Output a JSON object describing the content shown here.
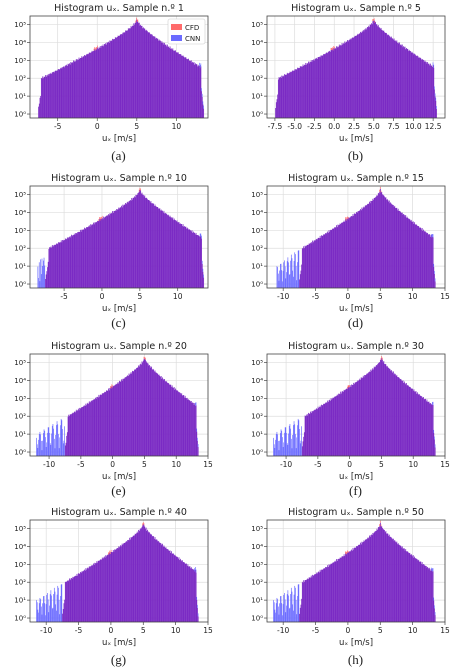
{
  "figure": {
    "captions": [
      "(a)",
      "(b)",
      "(c)",
      "(d)",
      "(e)",
      "(f)",
      "(g)",
      "(h)"
    ]
  },
  "colors": {
    "cfd": "#ff6b6b",
    "cnn": "#6b6bff",
    "overlap": "#7b2bc4",
    "grid": "#dddddd"
  },
  "chart_data": [
    {
      "type": "area",
      "title": "Histogram uₓ. Sample n.º 1",
      "xlabel": "uₓ [m/s]",
      "ylabel": "",
      "yscale": "log",
      "xlim": [
        -8.5,
        14
      ],
      "ylim": [
        0.6,
        300000
      ],
      "xticks": [
        -5,
        0,
        5,
        10
      ],
      "yticks": [
        1,
        10,
        100,
        1000,
        10000,
        100000
      ],
      "grid": true,
      "legend_position": "top-right",
      "series": [
        {
          "name": "CFD",
          "color": "#ff6b6b"
        },
        {
          "name": "CNN",
          "color": "#6b6bff"
        }
      ],
      "x_range": [
        -7.5,
        13.5
      ],
      "peak_x": 5.0,
      "peak_count": 200000,
      "spike_x": -0.2,
      "spike_count": 1500,
      "cnn_tail_min": -7.5
    },
    {
      "type": "area",
      "title": "Histogram uₓ. Sample n.º 5",
      "xlabel": "uₓ [m/s]",
      "ylabel": "",
      "yscale": "log",
      "xlim": [
        -8.5,
        14
      ],
      "ylim": [
        0.6,
        300000
      ],
      "xticks": [
        -7.5,
        -5.0,
        -2.5,
        0.0,
        2.5,
        5.0,
        7.5,
        10.0,
        12.5
      ],
      "yticks": [
        1,
        10,
        100,
        1000,
        10000,
        100000
      ],
      "grid": true,
      "legend_position": "none",
      "series": [
        {
          "name": "CFD",
          "color": "#ff6b6b"
        },
        {
          "name": "CNN",
          "color": "#6b6bff"
        }
      ],
      "x_range": [
        -7.5,
        13.0
      ],
      "peak_x": 5.0,
      "peak_count": 200000,
      "spike_x": -0.2,
      "spike_count": 2000,
      "cnn_tail_min": -7.5
    },
    {
      "type": "area",
      "title": "Histogram uₓ. Sample n.º 10",
      "xlabel": "uₓ [m/s]",
      "ylabel": "",
      "yscale": "log",
      "xlim": [
        -9.5,
        14
      ],
      "ylim": [
        0.6,
        300000
      ],
      "xticks": [
        -5,
        0,
        5,
        10
      ],
      "yticks": [
        1,
        10,
        100,
        1000,
        10000,
        100000
      ],
      "grid": true,
      "legend_position": "none",
      "series": [
        {
          "name": "CFD",
          "color": "#ff6b6b"
        },
        {
          "name": "CNN",
          "color": "#6b6bff"
        }
      ],
      "x_range": [
        -7.5,
        13.5
      ],
      "peak_x": 5.0,
      "peak_count": 200000,
      "spike_x": -0.2,
      "spike_count": 2000,
      "cnn_tail_min": -8.5
    },
    {
      "type": "area",
      "title": "Histogram uₓ. Sample n.º 15",
      "xlabel": "uₓ [m/s]",
      "ylabel": "",
      "yscale": "log",
      "xlim": [
        -12.5,
        15
      ],
      "ylim": [
        0.6,
        300000
      ],
      "xticks": [
        -10,
        -5,
        0,
        5,
        10,
        15
      ],
      "yticks": [
        1,
        10,
        100,
        1000,
        10000,
        100000
      ],
      "grid": true,
      "legend_position": "none",
      "series": [
        {
          "name": "CFD",
          "color": "#ff6b6b"
        },
        {
          "name": "CNN",
          "color": "#6b6bff"
        }
      ],
      "x_range": [
        -7.5,
        13.5
      ],
      "peak_x": 5.0,
      "peak_count": 200000,
      "spike_x": -0.2,
      "spike_count": 2000,
      "cnn_tail_min": -11.0
    },
    {
      "type": "area",
      "title": "Histogram uₓ. Sample n.º 20",
      "xlabel": "uₓ [m/s]",
      "ylabel": "",
      "yscale": "log",
      "xlim": [
        -13.0,
        15
      ],
      "ylim": [
        0.6,
        300000
      ],
      "xticks": [
        -10,
        -5,
        0,
        5,
        10,
        15
      ],
      "yticks": [
        1,
        10,
        100,
        1000,
        10000,
        100000
      ],
      "grid": true,
      "legend_position": "none",
      "series": [
        {
          "name": "CFD",
          "color": "#ff6b6b"
        },
        {
          "name": "CNN",
          "color": "#6b6bff"
        }
      ],
      "x_range": [
        -7.5,
        13.5
      ],
      "peak_x": 5.0,
      "peak_count": 200000,
      "spike_x": -0.2,
      "spike_count": 2000,
      "cnn_tail_min": -12.0
    },
    {
      "type": "area",
      "title": "Histogram uₓ. Sample n.º 30",
      "xlabel": "uₓ [m/s]",
      "ylabel": "",
      "yscale": "log",
      "xlim": [
        -13.0,
        15
      ],
      "ylim": [
        0.6,
        300000
      ],
      "xticks": [
        -10,
        -5,
        0,
        5,
        10,
        15
      ],
      "yticks": [
        1,
        10,
        100,
        1000,
        10000,
        100000
      ],
      "grid": true,
      "legend_position": "none",
      "series": [
        {
          "name": "CFD",
          "color": "#ff6b6b"
        },
        {
          "name": "CNN",
          "color": "#6b6bff"
        }
      ],
      "x_range": [
        -7.5,
        13.5
      ],
      "peak_x": 5.0,
      "peak_count": 200000,
      "spike_x": -0.2,
      "spike_count": 2000,
      "cnn_tail_min": -12.0
    },
    {
      "type": "area",
      "title": "Histogram uₓ. Sample n.º 40",
      "xlabel": "uₓ [m/s]",
      "ylabel": "",
      "yscale": "log",
      "xlim": [
        -12.5,
        15
      ],
      "ylim": [
        0.6,
        300000
      ],
      "xticks": [
        -10,
        -5,
        0,
        5,
        10,
        15
      ],
      "yticks": [
        1,
        10,
        100,
        1000,
        10000,
        100000
      ],
      "grid": true,
      "legend_position": "none",
      "series": [
        {
          "name": "CFD",
          "color": "#ff6b6b"
        },
        {
          "name": "CNN",
          "color": "#6b6bff"
        }
      ],
      "x_range": [
        -7.5,
        13.5
      ],
      "peak_x": 5.0,
      "peak_count": 200000,
      "spike_x": -0.2,
      "spike_count": 2000,
      "cnn_tail_min": -11.5
    },
    {
      "type": "area",
      "title": "Histogram uₓ. Sample n.º 50",
      "xlabel": "uₓ [m/s]",
      "ylabel": "",
      "yscale": "log",
      "xlim": [
        -12.5,
        15
      ],
      "ylim": [
        0.6,
        300000
      ],
      "xticks": [
        -10,
        -5,
        0,
        5,
        10,
        15
      ],
      "yticks": [
        1,
        10,
        100,
        1000,
        10000,
        100000
      ],
      "grid": true,
      "legend_position": "none",
      "series": [
        {
          "name": "CFD",
          "color": "#ff6b6b"
        },
        {
          "name": "CNN",
          "color": "#6b6bff"
        }
      ],
      "x_range": [
        -7.5,
        13.5
      ],
      "peak_x": 5.0,
      "peak_count": 200000,
      "spike_x": -0.2,
      "spike_count": 2000,
      "cnn_tail_min": -11.5
    }
  ]
}
